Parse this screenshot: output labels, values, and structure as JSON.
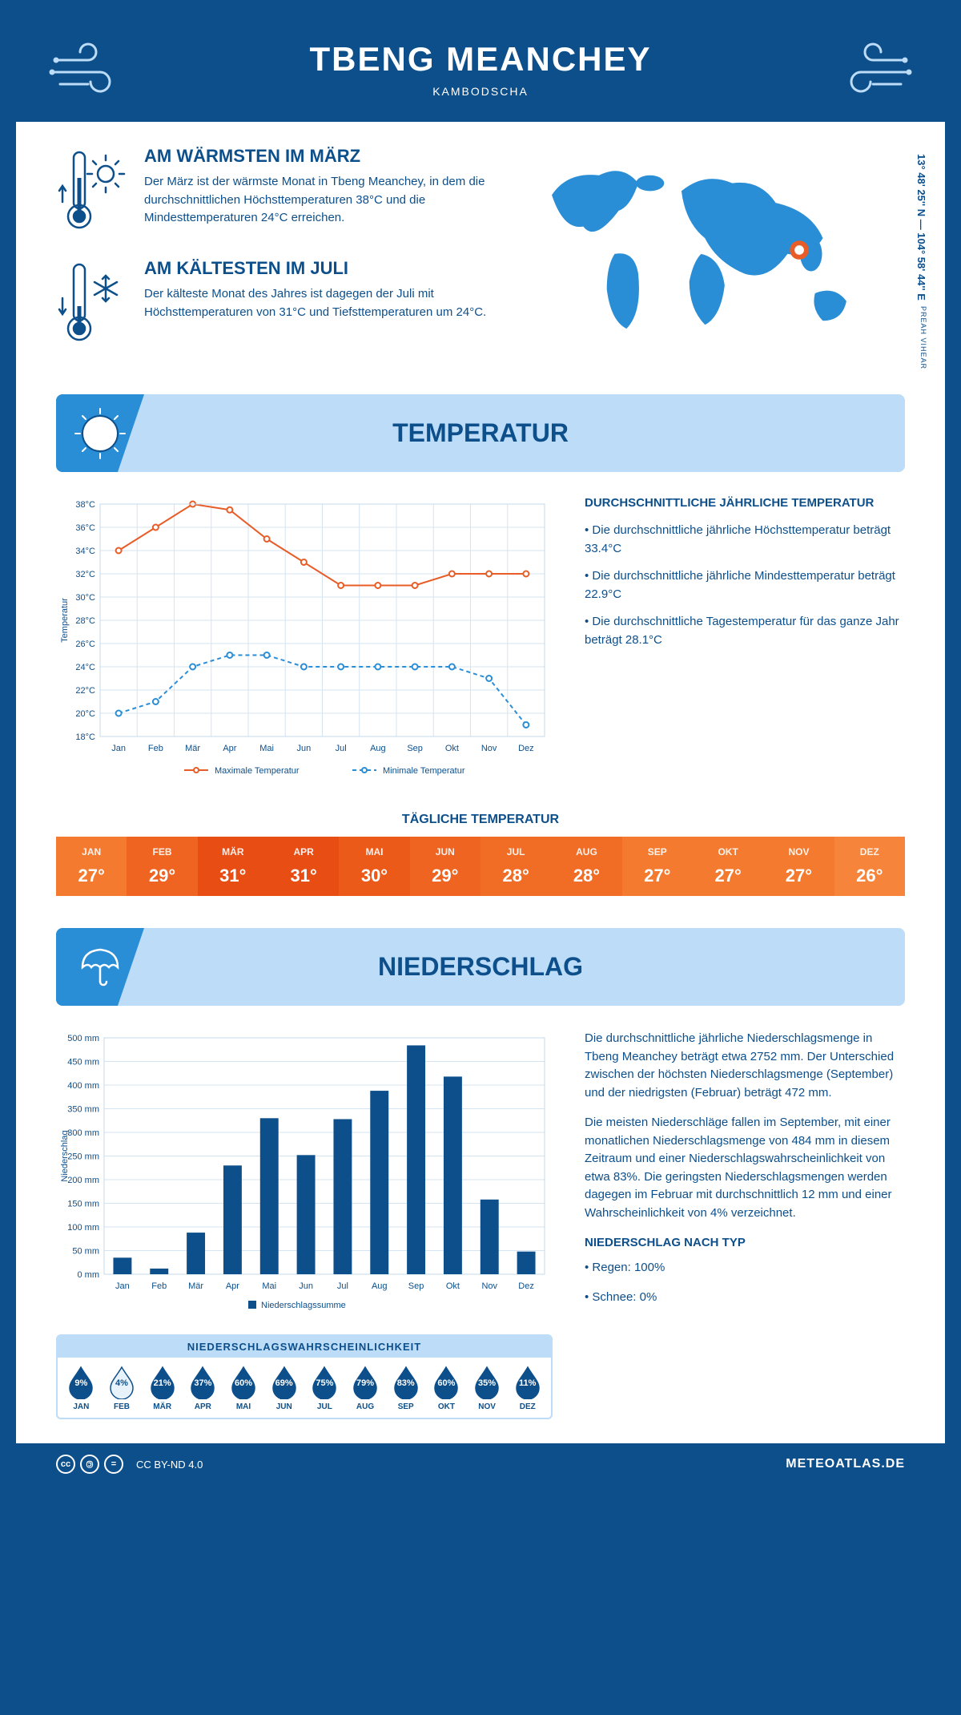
{
  "header": {
    "title": "TBENG MEANCHEY",
    "subtitle": "KAMBODSCHA"
  },
  "coords": "13° 48' 25'' N — 104° 58' 44'' E",
  "region": "PREAH VIHEAR",
  "facts": {
    "hot": {
      "title": "AM WÄRMSTEN IM MÄRZ",
      "text": "Der März ist der wärmste Monat in Tbeng Meanchey, in dem die durchschnittlichen Höchsttemperaturen 38°C und die Mindesttemperaturen 24°C erreichen."
    },
    "cold": {
      "title": "AM KÄLTESTEN IM JULI",
      "text": "Der kälteste Monat des Jahres ist dagegen der Juli mit Höchsttemperaturen von 31°C und Tiefsttemperaturen um 24°C."
    }
  },
  "sections": {
    "temp": "TEMPERATUR",
    "precip": "NIEDERSCHLAG"
  },
  "tempChart": {
    "months": [
      "Jan",
      "Feb",
      "Mär",
      "Apr",
      "Mai",
      "Jun",
      "Jul",
      "Aug",
      "Sep",
      "Okt",
      "Nov",
      "Dez"
    ],
    "max": [
      34,
      36,
      38,
      37.5,
      35,
      33,
      31,
      31,
      31,
      32,
      32,
      32
    ],
    "min": [
      20,
      21,
      24,
      25,
      25,
      24,
      24,
      24,
      24,
      24,
      23,
      19
    ],
    "ymin": 18,
    "ymax": 38,
    "ystep": 2,
    "max_color": "#e85c27",
    "min_color": "#2a8ed6",
    "max_label": "Maximale Temperatur",
    "min_label": "Minimale Temperatur",
    "ylabel": "Temperatur"
  },
  "tempText": {
    "title": "DURCHSCHNITTLICHE JÄHRLICHE TEMPERATUR",
    "p1": "• Die durchschnittliche jährliche Höchsttemperatur beträgt 33.4°C",
    "p2": "• Die durchschnittliche jährliche Mindesttemperatur beträgt 22.9°C",
    "p3": "• Die durchschnittliche Tagestemperatur für das ganze Jahr beträgt 28.1°C"
  },
  "daily": {
    "title": "TÄGLICHE TEMPERATUR",
    "months": [
      "JAN",
      "FEB",
      "MÄR",
      "APR",
      "MAI",
      "JUN",
      "JUL",
      "AUG",
      "SEP",
      "OKT",
      "NOV",
      "DEZ"
    ],
    "values": [
      "27°",
      "29°",
      "31°",
      "31°",
      "30°",
      "29°",
      "28°",
      "28°",
      "27°",
      "27°",
      "27°",
      "26°"
    ],
    "colors": [
      "#f47a2f",
      "#ee6420",
      "#e84d14",
      "#e84d14",
      "#ec5a1a",
      "#ee6420",
      "#f16d26",
      "#f16d26",
      "#f47a2f",
      "#f47a2f",
      "#f47a2f",
      "#f6843a"
    ]
  },
  "precipChart": {
    "months": [
      "Jan",
      "Feb",
      "Mär",
      "Apr",
      "Mai",
      "Jun",
      "Jul",
      "Aug",
      "Sep",
      "Okt",
      "Nov",
      "Dez"
    ],
    "values": [
      35,
      12,
      88,
      230,
      330,
      252,
      328,
      388,
      484,
      418,
      158,
      48
    ],
    "ymax": 500,
    "ystep": 50,
    "bar_color": "#0d4f8b",
    "ylabel": "Niederschlag",
    "legend": "Niederschlagssumme"
  },
  "precipText": {
    "p1": "Die durchschnittliche jährliche Niederschlagsmenge in Tbeng Meanchey beträgt etwa 2752 mm. Der Unterschied zwischen der höchsten Niederschlagsmenge (September) und der niedrigsten (Februar) beträgt 472 mm.",
    "p2": "Die meisten Niederschläge fallen im September, mit einer monatlichen Niederschlagsmenge von 484 mm in diesem Zeitraum und einer Niederschlagswahrscheinlichkeit von etwa 83%. Die geringsten Niederschlagsmengen werden dagegen im Februar mit durchschnittlich 12 mm und einer Wahrscheinlichkeit von 4% verzeichnet.",
    "typeTitle": "NIEDERSCHLAG NACH TYP",
    "type1": "• Regen: 100%",
    "type2": "• Schnee: 0%"
  },
  "prob": {
    "title": "NIEDERSCHLAGSWAHRSCHEINLICHKEIT",
    "months": [
      "JAN",
      "FEB",
      "MÄR",
      "APR",
      "MAI",
      "JUN",
      "JUL",
      "AUG",
      "SEP",
      "OKT",
      "NOV",
      "DEZ"
    ],
    "values": [
      9,
      4,
      21,
      37,
      60,
      69,
      75,
      79,
      83,
      60,
      35,
      11
    ],
    "low_threshold": 5,
    "fill_color": "#0d4f8b",
    "low_fill_color": "#e8f2fb"
  },
  "footer": {
    "license": "CC BY-ND 4.0",
    "brand": "METEOATLAS.DE"
  }
}
